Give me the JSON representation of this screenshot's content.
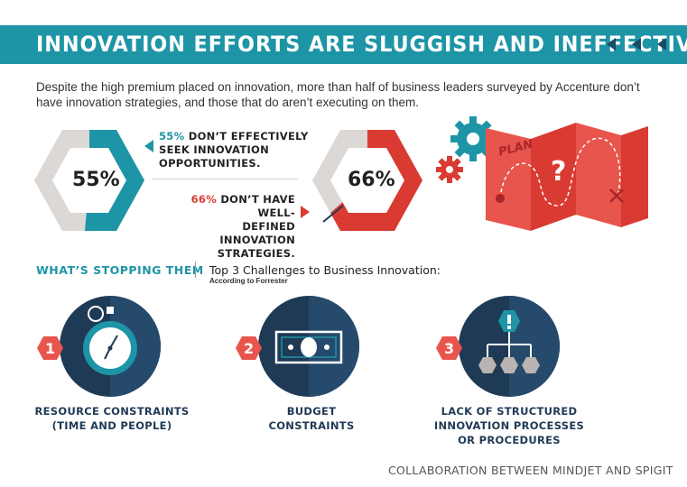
{
  "banner": {
    "title": "INNOVATION EFFORTS ARE SLUGGISH AND INEFFECTIVE",
    "color": "#1e95a6"
  },
  "intro": "Despite the high premium placed on innovation, more than half of business leaders surveyed by Accenture don’t have innovation strategies, and those that do aren’t executing on them.",
  "stats": [
    {
      "value": 55,
      "display": "55%",
      "highlight": "55%",
      "line1": " DON’T EFFECTIVELY",
      "line2": "SEEK INNOVATION",
      "line3": "OPPORTUNITIES.",
      "color": "#1e95a6"
    },
    {
      "value": 66,
      "display": "66%",
      "highlight": "66%",
      "line1": " DON’T HAVE WELL-",
      "line2": "DEFINED INNOVATION",
      "line3": "STRATEGIES.",
      "color": "#d93b32"
    }
  ],
  "plan_map": {
    "label": "PLAN",
    "symbol": "?",
    "icon": "plan-map-icon"
  },
  "section": {
    "label": "WHAT’S STOPPING THEM",
    "title": "Top 3 Challenges to Business Innovation:",
    "note": "According to Forrester"
  },
  "challenges": [
    {
      "number": "1",
      "line1": "RESOURCE CONSTRAINTS",
      "line2": "(TIME AND PEOPLE)",
      "line3": "",
      "icon": "stopwatch-icon"
    },
    {
      "number": "2",
      "line1": "BUDGET",
      "line2": "CONSTRAINTS",
      "line3": "",
      "icon": "banknote-icon"
    },
    {
      "number": "3",
      "line1": "LACK OF STRUCTURED",
      "line2": "INNOVATION PROCESSES",
      "line3": "OR PROCEDURES",
      "icon": "org-chart-icon"
    }
  ],
  "footer": "COLLABORATION BETWEEN MINDJET AND SPIGIT",
  "colors": {
    "teal": "#1e95a6",
    "red": "#d93b32",
    "navy": "#1f3a55",
    "grey": "#dcd8d6"
  }
}
